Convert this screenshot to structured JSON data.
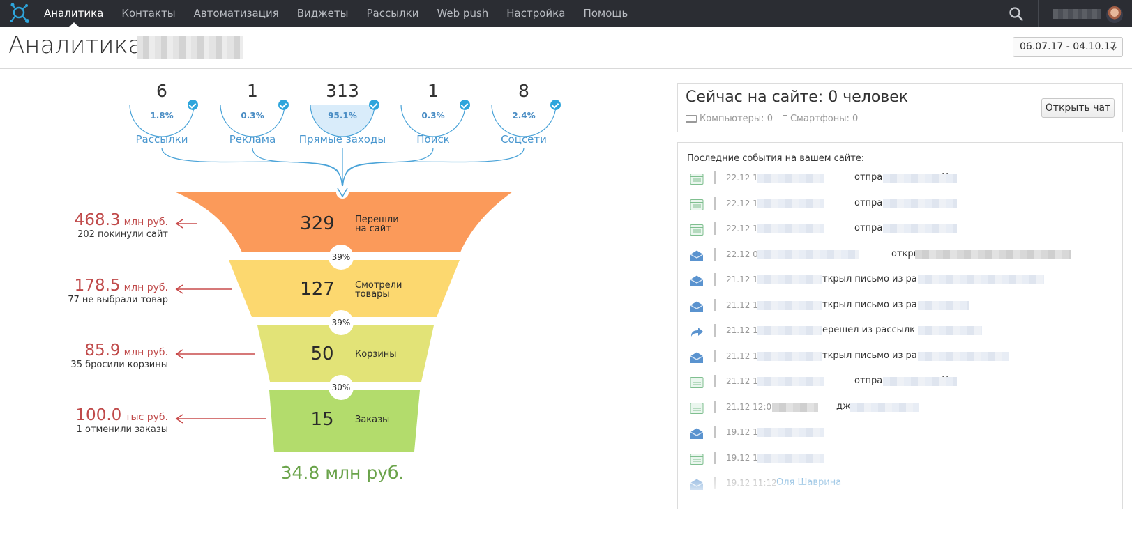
{
  "nav": {
    "items": [
      {
        "label": "Аналитика",
        "active": true
      },
      {
        "label": "Контакты"
      },
      {
        "label": "Автоматизация"
      },
      {
        "label": "Виджеты"
      },
      {
        "label": "Рассылки"
      },
      {
        "label": "Web push"
      },
      {
        "label": "Настройка"
      },
      {
        "label": "Помощь"
      }
    ]
  },
  "page": {
    "title": "Аналитика",
    "date_range": "06.07.17 - 04.10.17"
  },
  "sources": [
    {
      "count": "6",
      "percent": "1.8%",
      "label": "Рассылки",
      "share": 0.018
    },
    {
      "count": "1",
      "percent": "0.3%",
      "label": "Реклама",
      "share": 0.003
    },
    {
      "count": "313",
      "percent": "95.1%",
      "label": "Прямые заходы",
      "share": 0.951
    },
    {
      "count": "1",
      "percent": "0.3%",
      "label": "Поиск",
      "share": 0.003
    },
    {
      "count": "8",
      "percent": "2.4%",
      "label": "Соцсети",
      "share": 0.024
    }
  ],
  "funnel": {
    "stages": [
      {
        "count": "329",
        "label_line1": "Перешли",
        "label_line2": "на сайт",
        "color": "#fb9a5a"
      },
      {
        "count": "127",
        "label_line1": "Смотрели",
        "label_line2": "товары",
        "color": "#fcd86f"
      },
      {
        "count": "50",
        "label_line1": "Корзины",
        "label_line2": "",
        "color": "#e2e377"
      },
      {
        "count": "15",
        "label_line1": "Заказы",
        "label_line2": "",
        "color": "#b3dc6c"
      }
    ],
    "conversions": [
      "39%",
      "39%",
      "30%"
    ],
    "losses": [
      {
        "value": "468.3",
        "unit": "млн руб.",
        "caption": "202 покинули сайт"
      },
      {
        "value": "178.5",
        "unit": "млн руб.",
        "caption": "77 не выбрали товар"
      },
      {
        "value": "85.9",
        "unit": "млн руб.",
        "caption": "35 бросили корзины"
      },
      {
        "value": "100.0",
        "unit": "тыс руб.",
        "caption": "1 отменили заказы"
      }
    ],
    "total": "34.8 млн руб."
  },
  "online": {
    "title": "Сейчас на сайте: 0 человек",
    "computers": "Компьютеры: 0",
    "smartphones": "Смартфоны: 0",
    "open_chat_label": "Открыть чат"
  },
  "events": {
    "title": "Последние события на вашем сайте:",
    "items": [
      {
        "type": "widget",
        "time": "22.12 10:52",
        "text": "отправил виджет Н"
      },
      {
        "type": "widget",
        "time": "22.12 10:52",
        "text": "отправил виджет Т"
      },
      {
        "type": "widget",
        "time": "22.12 10:49",
        "text": "отправил виджет Н"
      },
      {
        "type": "mail",
        "time": "22.12 09:54",
        "text": "открыл пи"
      },
      {
        "type": "mail",
        "time": "21.12 17:16",
        "text": "ткрыл письмо из ра"
      },
      {
        "type": "mail",
        "time": "21.12 17:10",
        "text": "ткрыл письмо из ра"
      },
      {
        "type": "redirect",
        "time": "21.12 16:02",
        "text": "ерешел из рассылк"
      },
      {
        "type": "mail",
        "time": "21.12 16:02",
        "text": "ткрыл письмо из ра"
      },
      {
        "type": "widget",
        "time": "21.12 14:46",
        "text": "отправил виджет Н"
      },
      {
        "type": "widget",
        "time": "21.12 12:08",
        "text": "дже"
      },
      {
        "type": "mail",
        "time": "19.12 11:14",
        "text": ""
      },
      {
        "type": "widget",
        "time": "19.12 11:12",
        "text": ""
      },
      {
        "type": "mail",
        "time": "19.12 11:12",
        "text": "",
        "name": "Оля Шаврина"
      }
    ]
  },
  "colors": {
    "nav_bg": "#2b2d33",
    "accent_blue": "#2ea5dc",
    "loss_red": "#c04a4a",
    "total_green": "#6aa34a"
  }
}
